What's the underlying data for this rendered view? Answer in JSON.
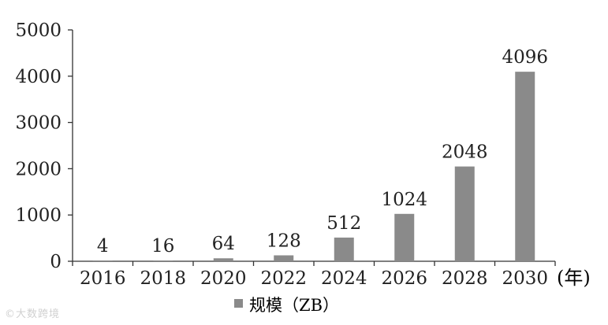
{
  "chart_data": {
    "type": "bar",
    "categories": [
      "2016",
      "2018",
      "2020",
      "2022",
      "2024",
      "2026",
      "2028",
      "2030"
    ],
    "series": [
      {
        "name": "规模（ZB）",
        "values": [
          4,
          16,
          64,
          128,
          512,
          1024,
          2048,
          4096
        ]
      }
    ],
    "data_labels": [
      "4",
      "16",
      "64",
      "128",
      "512",
      "1024",
      "2048",
      "4096"
    ],
    "yticks": [
      "0",
      "1000",
      "2000",
      "3000",
      "4000",
      "5000"
    ],
    "ylim": [
      0,
      5000
    ],
    "xunit": "(年)",
    "grid": false,
    "legend": "bottom-center",
    "bar_color": "#8a8a8a"
  },
  "watermark": "©大数跨境"
}
